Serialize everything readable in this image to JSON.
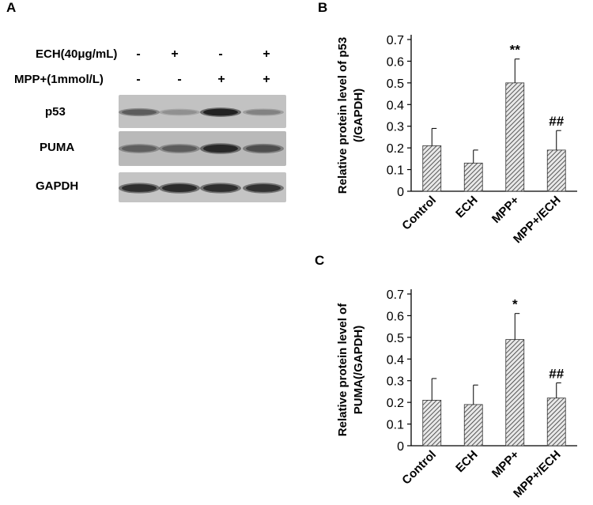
{
  "panel_a": {
    "letter": "A",
    "conditions": [
      {
        "label": "ECH(40μg/mL)",
        "signs": [
          "-",
          "+",
          "-",
          "+"
        ]
      },
      {
        "label": "MPP+(1mmol/L)",
        "signs": [
          "-",
          "-",
          "+",
          "+"
        ]
      }
    ],
    "blots": [
      {
        "label": "p53",
        "intensities": [
          0.62,
          0.32,
          0.95,
          0.4
        ]
      },
      {
        "label": "PUMA",
        "intensities": [
          0.6,
          0.62,
          0.92,
          0.7
        ]
      },
      {
        "label": "GAPDH",
        "intensities": [
          0.88,
          0.9,
          0.88,
          0.86
        ]
      }
    ]
  },
  "chart_data": [
    {
      "panel": "B",
      "type": "bar",
      "categories": [
        "Control",
        "ECH",
        "MPP+",
        "MPP+/ECH"
      ],
      "values": [
        0.21,
        0.13,
        0.5,
        0.19
      ],
      "errors": [
        0.08,
        0.06,
        0.11,
        0.09
      ],
      "annotations": [
        "",
        "",
        "**",
        "##"
      ],
      "ylabel_lines": [
        "Relative protein level of p53",
        "(/GAPDH)"
      ],
      "ylim": [
        0,
        0.7
      ],
      "yticks": [
        "0",
        "0.1",
        "0.2",
        "0.3",
        "0.4",
        "0.5",
        "0.6",
        "0.7"
      ],
      "grid": false
    },
    {
      "panel": "C",
      "type": "bar",
      "categories": [
        "Control",
        "ECH",
        "MPP+",
        "MPP+/ECH"
      ],
      "values": [
        0.21,
        0.19,
        0.49,
        0.22
      ],
      "errors": [
        0.1,
        0.09,
        0.12,
        0.07
      ],
      "annotations": [
        "",
        "",
        "*",
        "##"
      ],
      "ylabel_lines": [
        "Relative protein level of",
        "PUMA(/GAPDH)"
      ],
      "ylim": [
        0,
        0.7
      ],
      "yticks": [
        "0",
        "0.1",
        "0.2",
        "0.3",
        "0.4",
        "0.5",
        "0.6",
        "0.7"
      ],
      "grid": false
    }
  ]
}
